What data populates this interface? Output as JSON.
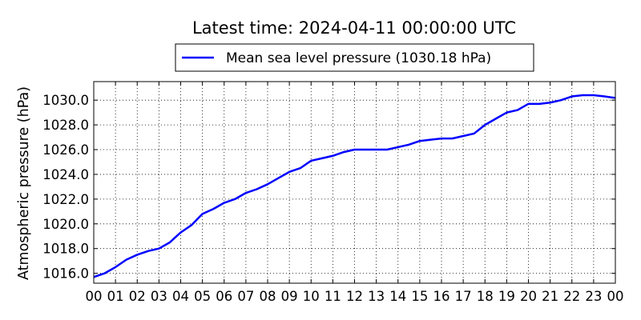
{
  "chart_data": {
    "type": "line",
    "title": "Latest time: 2024-04-11 00:00:00 UTC",
    "xlabel": "",
    "ylabel": "Atmospheric pressure (hPa)",
    "xlim": [
      0,
      24
    ],
    "ylim": [
      1015.2,
      1031.5
    ],
    "grid": true,
    "legend_position": "top-center",
    "x_tick_labels": [
      "00",
      "01",
      "02",
      "03",
      "04",
      "05",
      "06",
      "07",
      "08",
      "09",
      "10",
      "11",
      "12",
      "13",
      "14",
      "15",
      "16",
      "17",
      "18",
      "19",
      "20",
      "21",
      "22",
      "23",
      "00"
    ],
    "y_ticks": [
      1016.0,
      1018.0,
      1020.0,
      1022.0,
      1024.0,
      1026.0,
      1028.0,
      1030.0
    ],
    "y_tick_labels": [
      "1016.0",
      "1018.0",
      "1020.0",
      "1022.0",
      "1024.0",
      "1026.0",
      "1028.0",
      "1030.0"
    ],
    "series": [
      {
        "name": "Mean sea level pressure (1030.18 hPa)",
        "color": "#0000ff",
        "x": [
          0,
          0.5,
          1,
          1.5,
          2,
          2.5,
          3,
          3.5,
          4,
          4.5,
          5,
          5.5,
          6,
          6.5,
          7,
          7.5,
          8,
          8.5,
          9,
          9.5,
          10,
          10.5,
          11,
          11.5,
          12,
          12.5,
          13,
          13.5,
          14,
          14.5,
          15,
          15.5,
          16,
          16.5,
          17,
          17.5,
          18,
          18.5,
          19,
          19.5,
          20,
          20.5,
          21,
          21.5,
          22,
          22.5,
          23,
          23.5,
          24
        ],
        "y": [
          1015.7,
          1016.0,
          1016.5,
          1017.1,
          1017.5,
          1017.8,
          1018.0,
          1018.5,
          1019.3,
          1019.9,
          1020.8,
          1021.2,
          1021.7,
          1022.0,
          1022.5,
          1022.8,
          1023.2,
          1023.7,
          1024.2,
          1024.5,
          1025.1,
          1025.3,
          1025.5,
          1025.8,
          1026.0,
          1026.0,
          1026.0,
          1026.0,
          1026.2,
          1026.4,
          1026.7,
          1026.8,
          1026.9,
          1026.9,
          1027.1,
          1027.3,
          1028.0,
          1028.5,
          1029.0,
          1029.2,
          1029.7,
          1029.7,
          1029.8,
          1030.0,
          1030.3,
          1030.4,
          1030.4,
          1030.3,
          1030.18
        ]
      }
    ]
  }
}
